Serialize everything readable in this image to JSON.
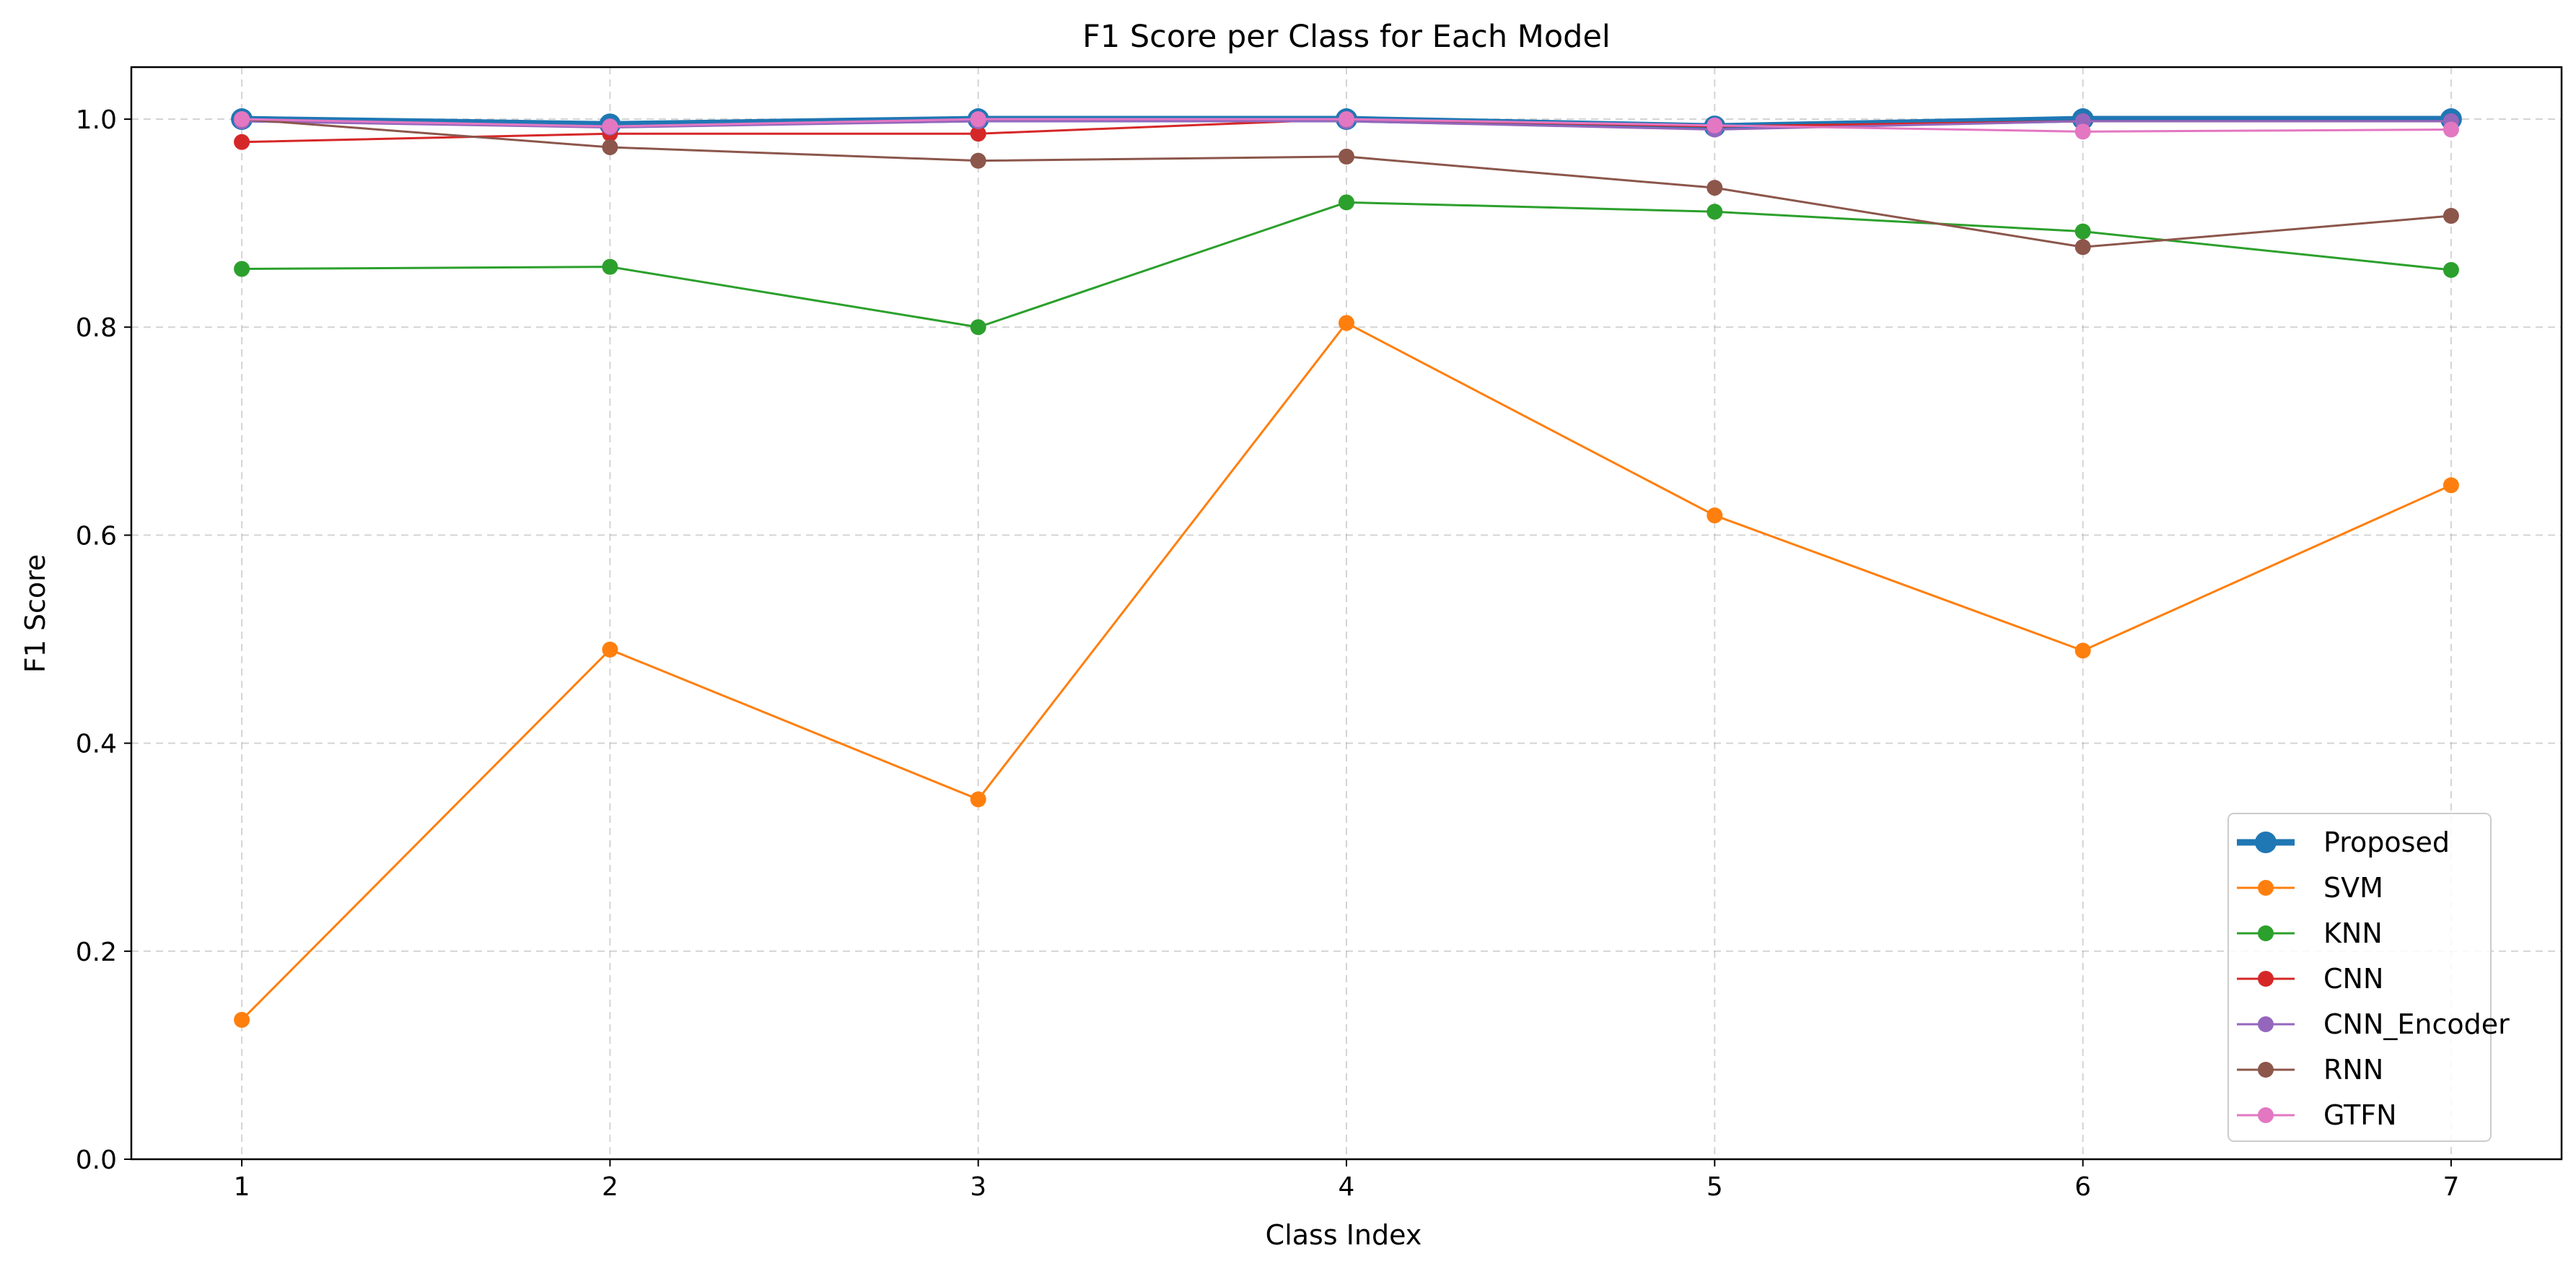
{
  "chart_data": {
    "type": "line",
    "title": "F1 Score per Class for Each Model",
    "xlabel": "Class Index",
    "ylabel": "F1 Score",
    "x": [
      1,
      2,
      3,
      4,
      5,
      6,
      7
    ],
    "xticks": [
      "1",
      "2",
      "3",
      "4",
      "5",
      "6",
      "7"
    ],
    "yticks": [
      "0.0",
      "0.2",
      "0.4",
      "0.6",
      "0.8",
      "1.0"
    ],
    "xlim": [
      0.7,
      7.3
    ],
    "ylim": [
      0.0,
      1.05
    ],
    "grid": true,
    "legend_position": "lower-right",
    "series": [
      {
        "name": "Proposed",
        "color": "#1f77b4",
        "emphasis": true,
        "values": [
          1.0,
          0.995,
          1.0,
          1.0,
          0.993,
          1.0,
          1.0
        ]
      },
      {
        "name": "SVM",
        "color": "#ff7f0e",
        "values": [
          0.134,
          0.49,
          0.346,
          0.804,
          0.619,
          0.489,
          0.648
        ]
      },
      {
        "name": "KNN",
        "color": "#2ca02c",
        "values": [
          0.856,
          0.858,
          0.8,
          0.92,
          0.911,
          0.892,
          0.855
        ]
      },
      {
        "name": "CNN",
        "color": "#d62728",
        "values": [
          0.978,
          0.986,
          0.986,
          1.0,
          0.993,
          0.998,
          0.998
        ]
      },
      {
        "name": "CNN_Encoder",
        "color": "#9467bd",
        "values": [
          0.998,
          0.992,
          0.998,
          0.998,
          0.99,
          0.998,
          0.998
        ]
      },
      {
        "name": "RNN",
        "color": "#8c564b",
        "values": [
          1.0,
          0.973,
          0.96,
          0.964,
          0.934,
          0.877,
          0.907
        ]
      },
      {
        "name": "GTFN",
        "color": "#e377c2",
        "values": [
          1.0,
          0.993,
          1.0,
          1.0,
          0.994,
          0.988,
          0.99
        ]
      }
    ]
  }
}
